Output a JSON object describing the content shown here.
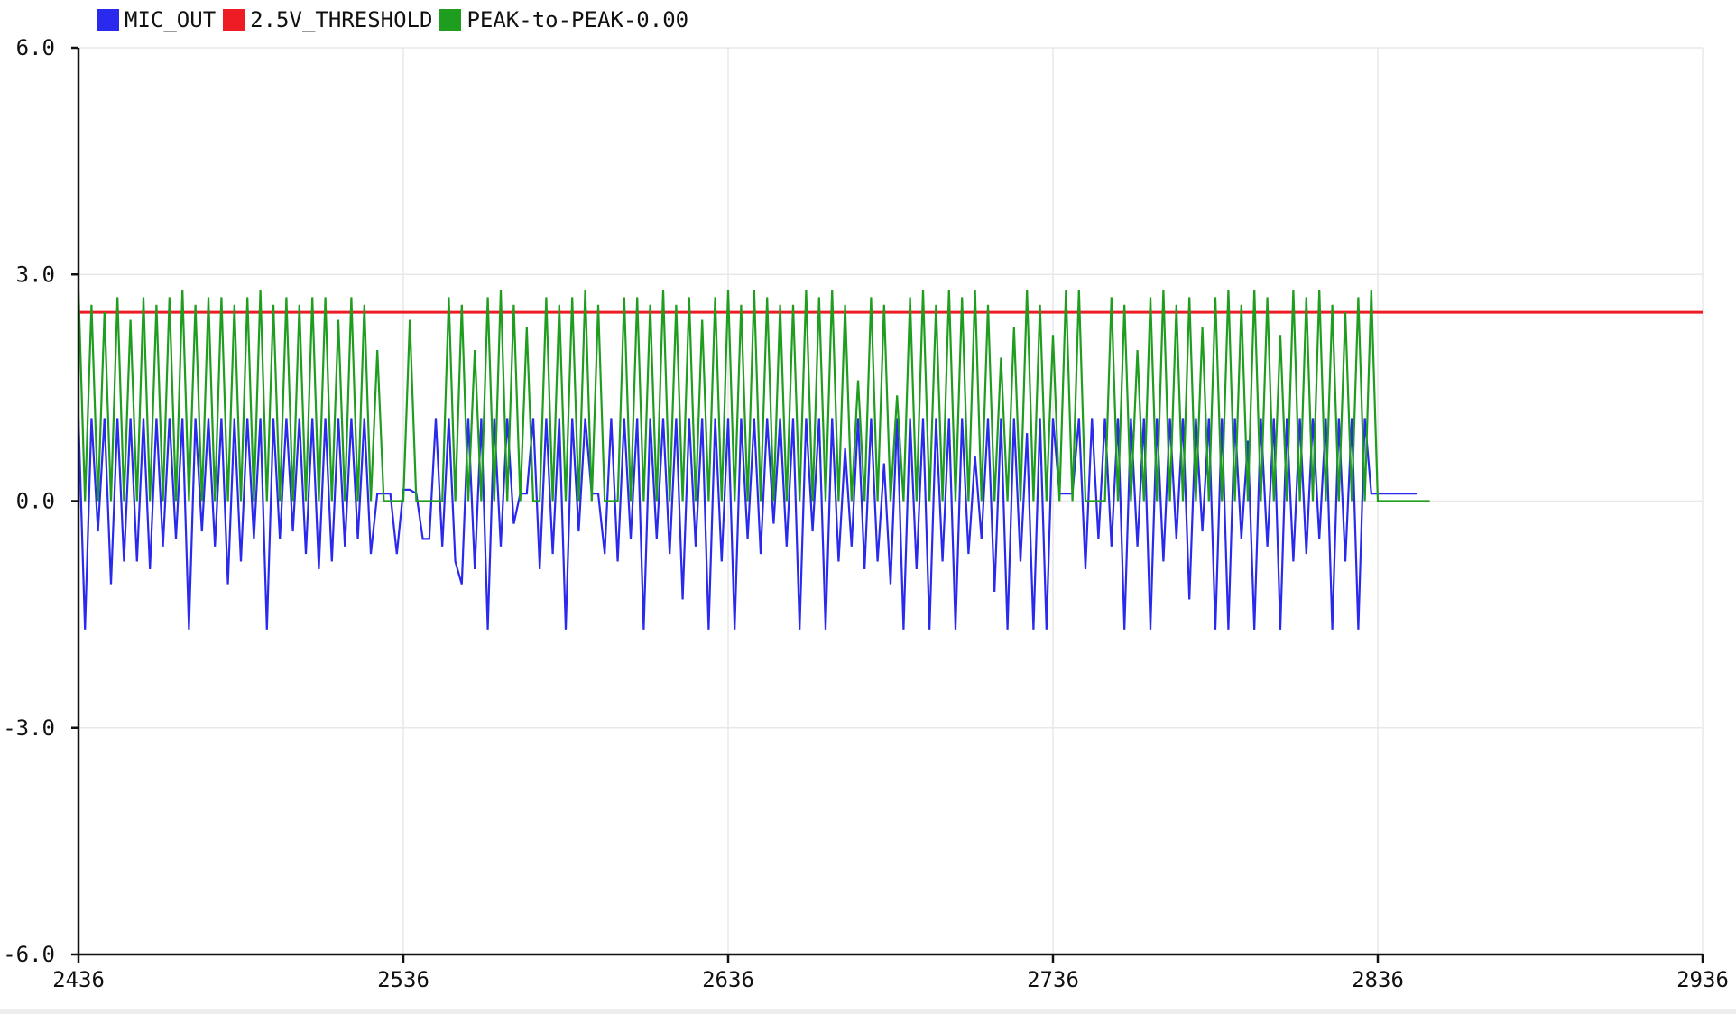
{
  "window": {
    "title": ""
  },
  "legend": [
    {
      "label": "MIC_OUT",
      "color": "#2a2aee",
      "icon": "blue-square"
    },
    {
      "label": "2.5V_THRESHOLD",
      "color": "#ee1c24",
      "icon": "red-square"
    },
    {
      "label": "PEAK-to-PEAK-0.00",
      "color": "#1f9d1f",
      "icon": "green-square"
    }
  ],
  "chart_data": {
    "type": "line",
    "title": "",
    "xlabel": "",
    "ylabel": "",
    "xlim": [
      2436,
      2936
    ],
    "ylim": [
      -6.0,
      6.0
    ],
    "x_ticks": [
      2436,
      2536,
      2636,
      2736,
      2836,
      2936
    ],
    "x_tick_labels": [
      "2436",
      "2536",
      "2636",
      "2736",
      "2836",
      "2936"
    ],
    "y_ticks": [
      -6.0,
      -3.0,
      0.0,
      3.0,
      6.0
    ],
    "y_tick_labels": [
      "-6.0",
      "-3.0",
      "0.0",
      "3.0",
      "6.0"
    ],
    "grid": true,
    "legend_position": "top-left",
    "x_start": 2436,
    "x_step": 2,
    "series": [
      {
        "name": "MIC_OUT",
        "color": "#2a2aee",
        "values": [
          1.1,
          -1.7,
          1.1,
          -0.4,
          1.1,
          -1.1,
          1.1,
          -0.8,
          1.1,
          -0.8,
          1.1,
          -0.9,
          1.1,
          -0.6,
          1.1,
          -0.5,
          1.1,
          -1.7,
          1.1,
          -0.4,
          1.1,
          -0.6,
          1.1,
          -1.1,
          1.1,
          -0.8,
          1.1,
          -0.5,
          1.1,
          -1.7,
          1.1,
          -0.5,
          1.1,
          -0.4,
          1.1,
          -0.7,
          1.1,
          -0.9,
          1.1,
          -0.8,
          1.1,
          -0.6,
          1.1,
          -0.5,
          1.1,
          -0.7,
          0.1,
          0.1,
          0.1,
          -0.7,
          0.15,
          0.15,
          0.1,
          -0.5,
          -0.5,
          1.1,
          -0.6,
          1.1,
          -0.8,
          -1.1,
          1.1,
          -0.9,
          1.1,
          -1.7,
          1.1,
          -0.6,
          1.1,
          -0.3,
          0.1,
          0.1,
          1.1,
          -0.9,
          1.1,
          -0.7,
          1.1,
          -1.7,
          1.1,
          -0.4,
          1.1,
          0.1,
          0.1,
          -0.7,
          1.1,
          -0.8,
          1.1,
          -0.5,
          1.1,
          -1.7,
          1.1,
          -0.5,
          1.1,
          -0.7,
          1.1,
          -1.3,
          1.1,
          -0.6,
          1.1,
          -1.7,
          1.1,
          -0.8,
          1.1,
          -1.7,
          1.1,
          -0.5,
          1.1,
          -0.7,
          1.1,
          -0.3,
          1.1,
          -0.6,
          1.1,
          -1.7,
          1.1,
          -0.4,
          1.1,
          -1.7,
          1.1,
          -0.8,
          0.7,
          -0.6,
          1.1,
          -0.9,
          1.1,
          -0.8,
          0.5,
          -1.1,
          1.1,
          -1.7,
          1.1,
          -0.9,
          1.1,
          -1.7,
          1.1,
          -0.8,
          1.1,
          -1.7,
          1.1,
          -0.7,
          0.6,
          -0.5,
          1.1,
          -1.2,
          1.1,
          -1.7,
          1.1,
          -0.8,
          0.9,
          -1.7,
          1.1,
          -1.7,
          1.1,
          0.1,
          0.1,
          0.1,
          1.1,
          -0.9,
          1.1,
          -0.5,
          1.1,
          -0.6,
          1.1,
          -1.7,
          1.1,
          -0.6,
          1.1,
          -1.7,
          1.1,
          -0.8,
          1.1,
          -0.5,
          1.1,
          -1.3,
          1.1,
          -0.4,
          1.1,
          -1.7,
          1.1,
          -1.7,
          1.1,
          -0.5,
          0.8,
          -1.7,
          1.1,
          -0.6,
          1.1,
          -1.7,
          1.1,
          -0.8,
          1.1,
          -0.7,
          1.1,
          -0.5,
          1.1,
          -1.7,
          1.1,
          -0.8,
          1.1,
          -1.7,
          1.1,
          0.1,
          0.1,
          0.1,
          0.1,
          0.1,
          0.1,
          0.1,
          0.1
        ]
      },
      {
        "name": "2.5V_THRESHOLD",
        "color": "#ee1c24",
        "values": [
          2.5,
          2.5
        ]
      },
      {
        "name": "PEAK-to-PEAK-0.00",
        "color": "#1f9d1f",
        "values": [
          2.8,
          0,
          2.6,
          0,
          2.5,
          0,
          2.7,
          0,
          2.4,
          0,
          2.7,
          0,
          2.6,
          0,
          2.7,
          0,
          2.8,
          0,
          2.6,
          0,
          2.7,
          0,
          2.7,
          0,
          2.6,
          0,
          2.7,
          0,
          2.8,
          0,
          2.6,
          0,
          2.7,
          0,
          2.6,
          0,
          2.7,
          0,
          2.7,
          0,
          2.4,
          0,
          2.7,
          0,
          2.6,
          0,
          2.0,
          0,
          0,
          0,
          0,
          2.4,
          0,
          0,
          0,
          0,
          0,
          2.7,
          0,
          2.6,
          0,
          2.0,
          0,
          2.7,
          0,
          2.8,
          0,
          2.6,
          0,
          2.3,
          0,
          0,
          2.7,
          0,
          2.6,
          0,
          2.7,
          0,
          2.8,
          0,
          2.6,
          0,
          0,
          0,
          2.7,
          0,
          2.7,
          0,
          2.6,
          0,
          2.8,
          0,
          2.6,
          0,
          2.7,
          0,
          2.4,
          0,
          2.7,
          0,
          2.8,
          0,
          2.6,
          0,
          2.8,
          0,
          2.7,
          0,
          2.6,
          0,
          2.6,
          0,
          2.8,
          0,
          2.7,
          0,
          2.8,
          0,
          2.6,
          0,
          1.6,
          0,
          2.7,
          0,
          2.6,
          0,
          1.4,
          0,
          2.7,
          0,
          2.8,
          0,
          2.6,
          0,
          2.8,
          0,
          2.7,
          0,
          2.8,
          0,
          2.6,
          0,
          1.9,
          0,
          2.3,
          0,
          2.8,
          0,
          2.6,
          0,
          2.2,
          0,
          2.8,
          0,
          2.8,
          0,
          0,
          0,
          0,
          2.7,
          0,
          2.6,
          0,
          2.0,
          0,
          2.7,
          0,
          2.8,
          0,
          2.6,
          0,
          2.7,
          0,
          2.3,
          0,
          2.7,
          0,
          2.8,
          0,
          2.6,
          0,
          2.8,
          0,
          2.7,
          0,
          2.2,
          0,
          2.8,
          0,
          2.7,
          0,
          2.8,
          0,
          2.6,
          0,
          2.5,
          0,
          2.7,
          0,
          2.8,
          0,
          0,
          0,
          0,
          0,
          0,
          0,
          0,
          0
        ]
      }
    ]
  }
}
